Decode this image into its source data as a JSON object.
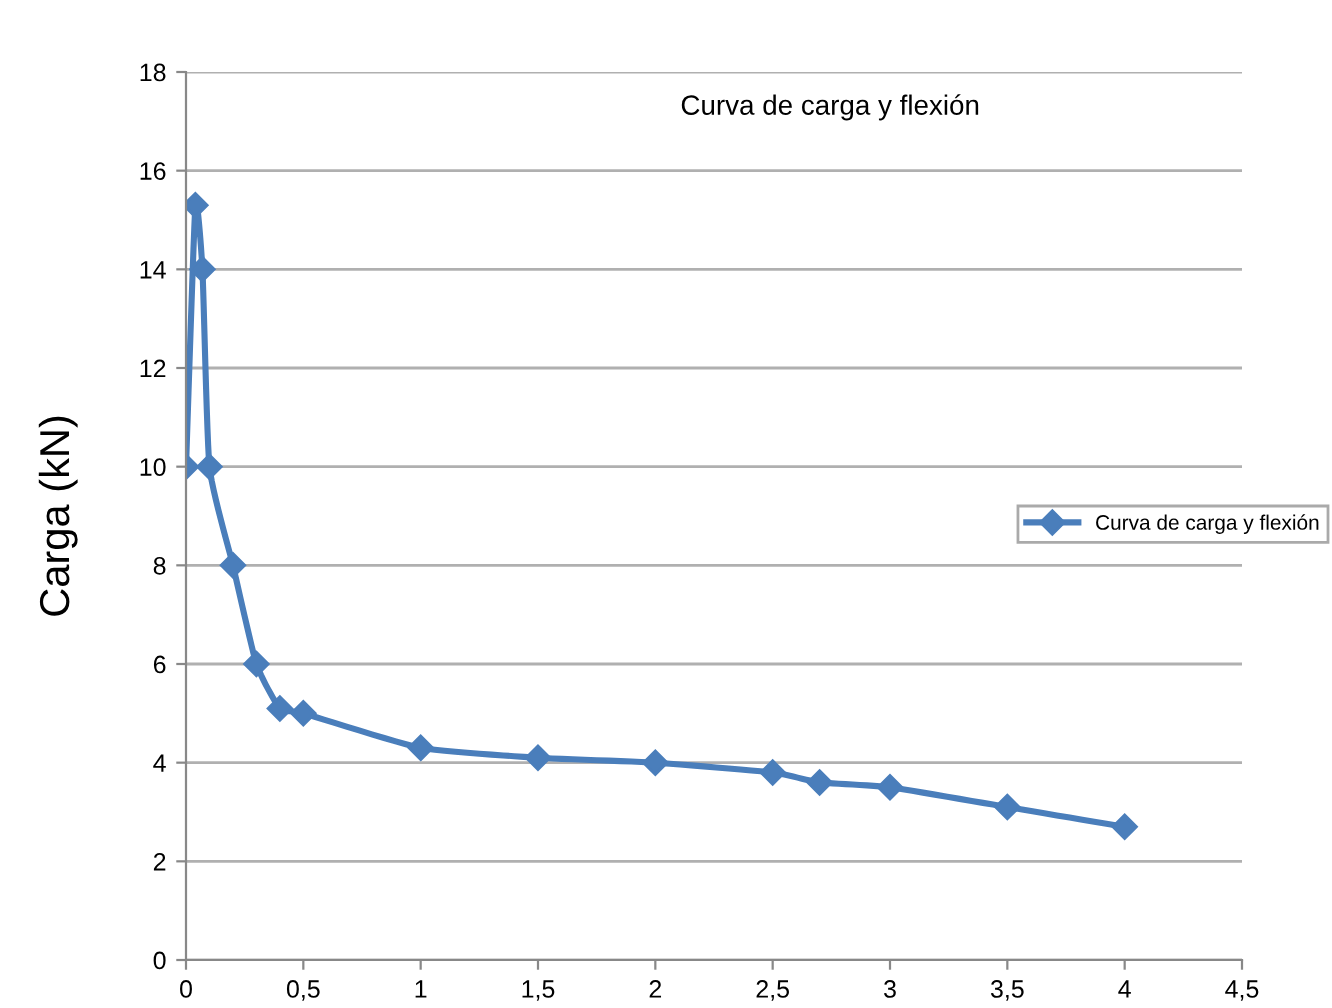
{
  "chart_data": {
    "type": "line",
    "title": "Curva de carga y flexión",
    "ylabel": "Carga (kN)",
    "series": [
      {
        "name": "Curva de carga y flexión",
        "color": "#4a7ebb",
        "x": [
          0,
          0.04,
          0.07,
          0.1,
          0.2,
          0.3,
          0.4,
          0.5,
          1,
          1.5,
          2,
          2.5,
          2.7,
          3,
          3.5,
          4
        ],
        "values": [
          10,
          15.3,
          14,
          10,
          8,
          6,
          5.1,
          5,
          4.3,
          4.1,
          4.0,
          3.8,
          3.6,
          3.5,
          3.1,
          2.7
        ]
      }
    ],
    "xlim": [
      0,
      4.5
    ],
    "xticks": [
      {
        "value": 0,
        "label": "0"
      },
      {
        "value": 0.5,
        "label": "0,5"
      },
      {
        "value": 1,
        "label": "1"
      },
      {
        "value": 1.5,
        "label": "1,5"
      },
      {
        "value": 2,
        "label": "2"
      },
      {
        "value": 2.5,
        "label": "2,5"
      },
      {
        "value": 3,
        "label": "3"
      },
      {
        "value": 3.5,
        "label": "3,5"
      },
      {
        "value": 4,
        "label": "4"
      },
      {
        "value": 4.5,
        "label": "4,5"
      }
    ],
    "ylim": [
      0,
      18
    ],
    "yticks": [
      0,
      2,
      4,
      6,
      8,
      10,
      12,
      14,
      16,
      18
    ],
    "grid": "y",
    "legend": "right",
    "marker": "diamond",
    "line_style": "solid"
  }
}
